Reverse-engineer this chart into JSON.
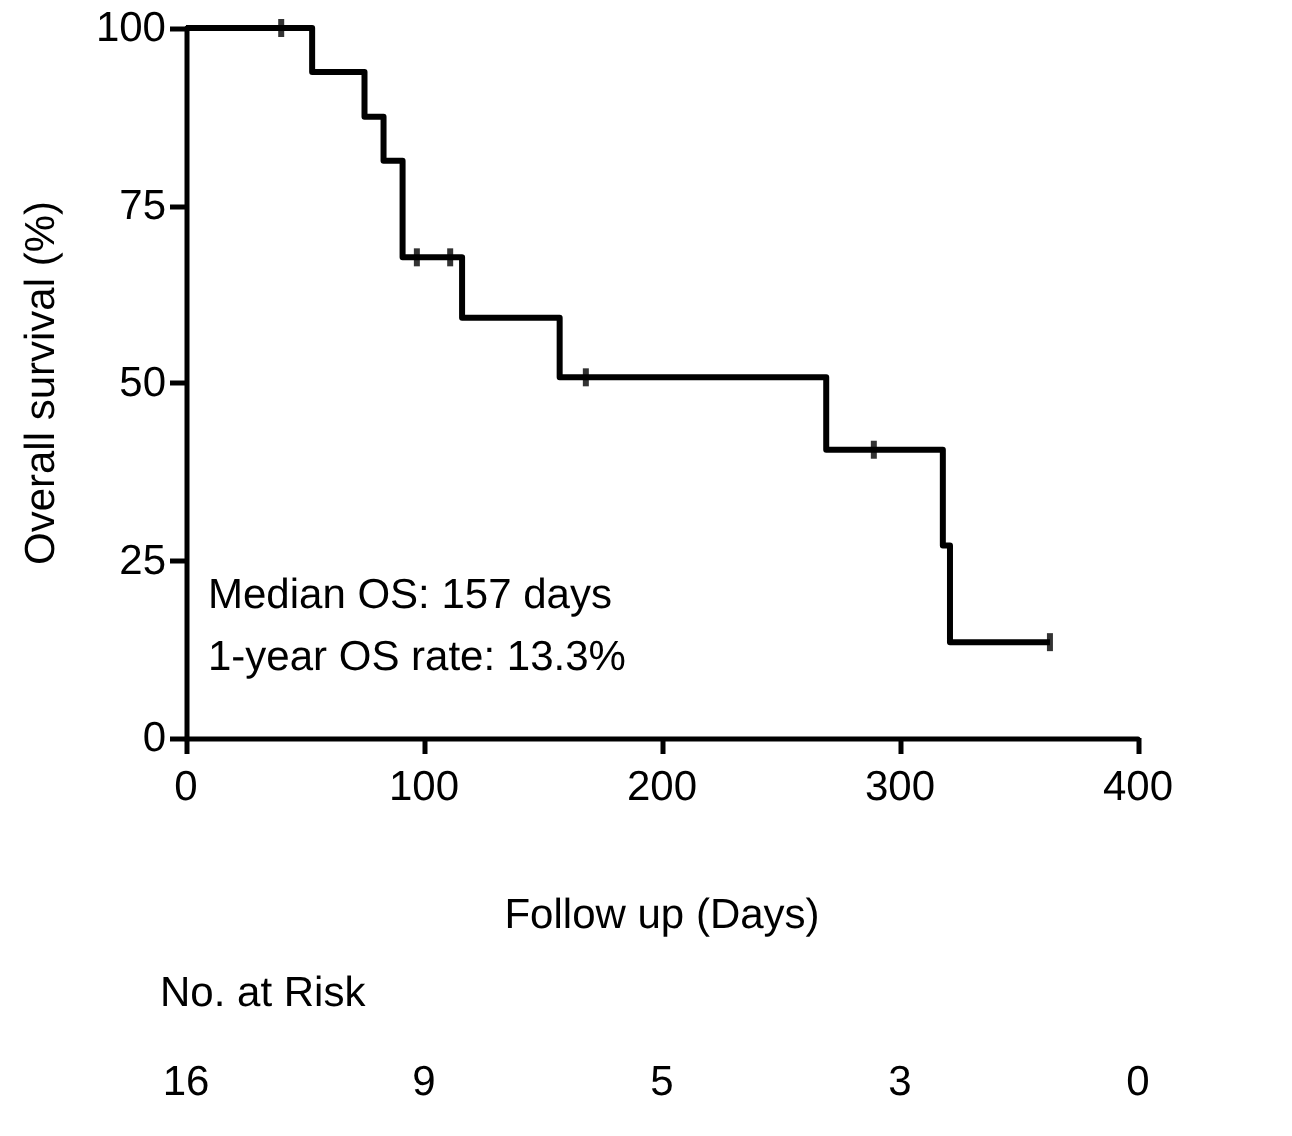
{
  "chart_data": {
    "type": "step",
    "xlabel": "Follow up (Days)",
    "ylabel": "Overall survival (%)",
    "x": [
      0,
      53,
      75,
      83,
      91,
      116,
      157,
      269,
      318,
      321,
      363
    ],
    "series": [
      {
        "color": "#000000",
        "marker": "none",
        "line_style": "solid",
        "values": [
          100,
          93.8,
          87.5,
          81.3,
          67.7,
          59.2,
          50.8,
          40.6,
          27.1,
          13.5,
          13.5
        ]
      },
      {
        "type": "scatter",
        "color": "#000000",
        "x": [
          40,
          97,
          111,
          168,
          289,
          363
        ],
        "values": [
          100,
          67.7,
          67.7,
          50.8,
          40.6,
          13.5
        ]
      }
    ],
    "xlim": [
      0,
      400
    ],
    "xticks": [
      0,
      100,
      200,
      300,
      400
    ],
    "ylim": [
      0,
      100
    ],
    "yticks": [
      0,
      25,
      50,
      75,
      100
    ],
    "annotations": [
      "Median OS: 157 days",
      "1-year OS rate: 13.3%",
      "No. at Risk",
      "16",
      "9",
      "5",
      "3",
      "0"
    ]
  }
}
